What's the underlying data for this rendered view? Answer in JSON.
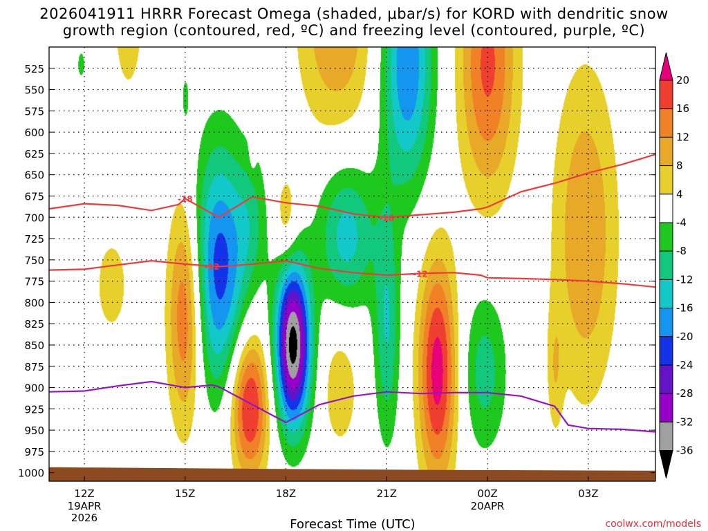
{
  "chart_data": {
    "type": "heatmap",
    "title_line1": "2026041911 HRRR Forecast Omega (shaded, μbar/s) for KORD with dendritic snow",
    "title_line2": "growth region (contoured, red, ºC) and freezing level (contoured, purple, ºC)",
    "xlabel": "Forecast Time (UTC)",
    "credit": "coolwx.com/models",
    "x_ticks": [
      {
        "hour": 1,
        "label": "12Z",
        "sub1": "19APR",
        "sub2": "2026"
      },
      {
        "hour": 4,
        "label": "15Z",
        "sub1": "",
        "sub2": ""
      },
      {
        "hour": 7,
        "label": "18Z",
        "sub1": "",
        "sub2": ""
      },
      {
        "hour": 10,
        "label": "21Z",
        "sub1": "",
        "sub2": ""
      },
      {
        "hour": 13,
        "label": "00Z",
        "sub1": "20APR",
        "sub2": ""
      },
      {
        "hour": 16,
        "label": "03Z",
        "sub1": "",
        "sub2": ""
      }
    ],
    "x_range_hours": [
      -0.05,
      18.0
    ],
    "y_levels": [
      "525",
      "550",
      "575",
      "600",
      "625",
      "650",
      "675",
      "700",
      "725",
      "750",
      "775",
      "800",
      "825",
      "850",
      "875",
      "900",
      "925",
      "950",
      "975",
      "1000"
    ],
    "y_range_hPa": [
      500,
      1010
    ],
    "colorbar": {
      "labels": [
        "20",
        "16",
        "12",
        "8",
        "4",
        "-4",
        "-8",
        "-12",
        "-16",
        "-20",
        "-24",
        "-28",
        "-32",
        "-36"
      ],
      "colors": [
        "#e8007a",
        "#ef3f30",
        "#f08126",
        "#e8a828",
        "#e8d02c",
        "#ffffff",
        "#1ec81e",
        "#12c87c",
        "#12c8c8",
        "#1496f0",
        "#1432e6",
        "#6414c8",
        "#9600c8",
        "#a0a0a0",
        "#000000"
      ]
    },
    "omega_blobs": [
      {
        "hour": 0.9,
        "p": 520,
        "rh": 0.15,
        "rp": 22,
        "peak": -6
      },
      {
        "hour": 1.8,
        "p": 780,
        "rh": 0.6,
        "rp": 70,
        "peak": 6
      },
      {
        "hour": 2.3,
        "p": 470,
        "rh": 0.8,
        "rp": 150,
        "peak": 5
      },
      {
        "hour": 4.0,
        "p": 810,
        "rh": 0.55,
        "rp": 140,
        "peak": 18
      },
      {
        "hour": 4.0,
        "p": 560,
        "rh": 0.12,
        "rp": 30,
        "peak": -6
      },
      {
        "hour": 5.0,
        "p": 760,
        "rh": 0.9,
        "rp": 150,
        "peak": -22
      },
      {
        "hour": 6.0,
        "p": 700,
        "rh": 0.5,
        "rp": 80,
        "peak": -6
      },
      {
        "hour": 5.9,
        "p": 920,
        "rh": 0.6,
        "rp": 90,
        "peak": 22
      },
      {
        "hour": 7.2,
        "p": 850,
        "rh": 0.55,
        "rp": 100,
        "peak": -38
      },
      {
        "hour": 7.0,
        "p": 700,
        "rh": 0.35,
        "rp": 55,
        "peak": 8
      },
      {
        "hour": 6.0,
        "p": 620,
        "rh": 0.1,
        "rp": 25,
        "peak": 5
      },
      {
        "hour": 8.5,
        "p": 470,
        "rh": 1.2,
        "rp": 140,
        "peak": 12
      },
      {
        "hour": 8.8,
        "p": 720,
        "rh": 0.9,
        "rp": 90,
        "peak": -14
      },
      {
        "hour": 8.6,
        "p": 900,
        "rh": 0.6,
        "rp": 80,
        "peak": 7
      },
      {
        "hour": 10.6,
        "p": 520,
        "rh": 0.8,
        "rp": 150,
        "peak": -20
      },
      {
        "hour": 10.0,
        "p": 830,
        "rh": 0.4,
        "rp": 140,
        "peak": -12
      },
      {
        "hour": 11.5,
        "p": 880,
        "rh": 0.6,
        "rp": 140,
        "peak": 22
      },
      {
        "hour": 12.9,
        "p": 880,
        "rh": 0.7,
        "rp": 100,
        "peak": -10
      },
      {
        "hour": 13.0,
        "p": 520,
        "rh": 0.9,
        "rp": 160,
        "peak": 17
      },
      {
        "hour": 15.0,
        "p": 880,
        "rh": 0.25,
        "rp": 80,
        "peak": 6
      },
      {
        "hour": 15.9,
        "p": 720,
        "rh": 1.0,
        "rp": 200,
        "peak": 12
      }
    ],
    "contours": [
      {
        "name": "dendritic-top",
        "label": "-18",
        "color": "#ef3a3a",
        "label_hours": [
          4.0,
          10.0
        ],
        "points": [
          [
            -0.05,
            690
          ],
          [
            1,
            684
          ],
          [
            2,
            686
          ],
          [
            3,
            692
          ],
          [
            3.8,
            685
          ],
          [
            4.0,
            678
          ],
          [
            5,
            700
          ],
          [
            6,
            676
          ],
          [
            7,
            683
          ],
          [
            8,
            687
          ],
          [
            9,
            696
          ],
          [
            10,
            700
          ],
          [
            11,
            697
          ],
          [
            12,
            694
          ],
          [
            12.8,
            690
          ],
          [
            13,
            688
          ],
          [
            14,
            670
          ],
          [
            15,
            660
          ],
          [
            16,
            648
          ],
          [
            17,
            638
          ],
          [
            18,
            626
          ]
        ]
      },
      {
        "name": "dendritic-bottom",
        "label": "-12",
        "color": "#ef3a3a",
        "label_hours": [
          4.8,
          11.0
        ],
        "points": [
          [
            -0.05,
            762
          ],
          [
            1,
            761
          ],
          [
            2,
            756
          ],
          [
            3,
            751
          ],
          [
            4,
            755
          ],
          [
            5,
            758
          ],
          [
            6,
            755
          ],
          [
            7,
            751
          ],
          [
            8,
            760
          ],
          [
            9,
            765
          ],
          [
            10,
            768
          ],
          [
            11,
            766
          ],
          [
            12,
            765
          ],
          [
            12.8,
            768
          ],
          [
            13,
            771
          ],
          [
            14,
            772
          ],
          [
            15,
            773
          ],
          [
            16,
            775
          ],
          [
            17,
            778
          ],
          [
            18,
            782
          ]
        ]
      },
      {
        "name": "freezing-level",
        "label": "0",
        "color": "#9614c8",
        "label_hours": [],
        "points": [
          [
            -0.05,
            905
          ],
          [
            1,
            904
          ],
          [
            2,
            898
          ],
          [
            3,
            893
          ],
          [
            4,
            900
          ],
          [
            4.8,
            897
          ],
          [
            5,
            899
          ],
          [
            6,
            920
          ],
          [
            7,
            941
          ],
          [
            8,
            920
          ],
          [
            9,
            910
          ],
          [
            10,
            905
          ],
          [
            11,
            907
          ],
          [
            12,
            906
          ],
          [
            13,
            906
          ],
          [
            14,
            910
          ],
          [
            15,
            922
          ],
          [
            15.4,
            944
          ],
          [
            16,
            948
          ],
          [
            17,
            949
          ],
          [
            18,
            952
          ]
        ]
      }
    ],
    "terrain": {
      "color": "#8b4a20",
      "top_hPa": 996
    }
  }
}
